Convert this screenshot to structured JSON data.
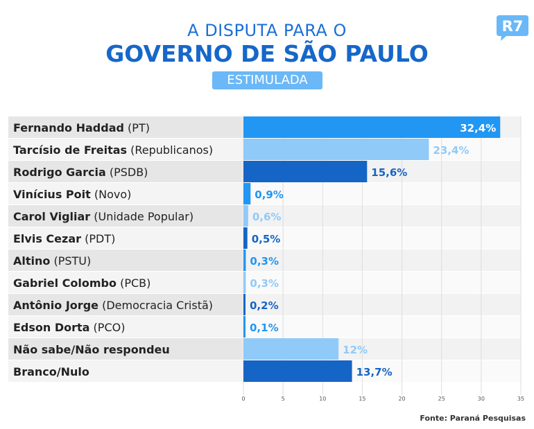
{
  "header": {
    "title_line1": "A DISPUTA PARA O",
    "title_line2": "GOVERNO DE SÃO PAULO",
    "subtitle": "ESTIMULADA",
    "logo_text": "R7"
  },
  "source": "Fonte: Paraná Pesquisas",
  "colors": {
    "dark_blue": "#1565c6",
    "mid_blue": "#2196f3",
    "light_blue": "#90caf9",
    "row_dark": "#e6e6e6",
    "row_light": "#f4f4f4",
    "title_blue": "#1667c9"
  },
  "chart_data": {
    "type": "bar",
    "orientation": "horizontal",
    "title": "A DISPUTA PARA O GOVERNO DE SÃO PAULO",
    "subtitle": "ESTIMULADA",
    "xlim": [
      0,
      35
    ],
    "xticks": [
      "0",
      "5",
      "10",
      "15",
      "20",
      "25",
      "30",
      "35"
    ],
    "grid": true,
    "categories": [
      {
        "name": "Fernando Haddad",
        "party": "(PT)"
      },
      {
        "name": "Tarcísio de Freitas",
        "party": "(Republicanos)"
      },
      {
        "name": "Rodrigo Garcia",
        "party": "(PSDB)"
      },
      {
        "name": "Vinícius Poit",
        "party": "(Novo)"
      },
      {
        "name": "Carol Vigliar",
        "party": "(Unidade Popular)"
      },
      {
        "name": "Elvis Cezar",
        "party": "(PDT)"
      },
      {
        "name": "Altino",
        "party": "(PSTU)"
      },
      {
        "name": "Gabriel Colombo",
        "party": "(PCB)"
      },
      {
        "name": "Antônio Jorge",
        "party": "(Democracia Cristã)"
      },
      {
        "name": "Edson Dorta",
        "party": "(PCO)"
      },
      {
        "name": "Não sabe/Não respondeu",
        "party": ""
      },
      {
        "name": "Branco/Nulo",
        "party": ""
      }
    ],
    "values": [
      32.4,
      23.4,
      15.6,
      0.9,
      0.6,
      0.5,
      0.3,
      0.3,
      0.2,
      0.1,
      12,
      13.7
    ],
    "value_labels": [
      "32,4%",
      "23,4%",
      "15,6%",
      "0,9%",
      "0,6%",
      "0,5%",
      "0,3%",
      "0,3%",
      "0,2%",
      "0,1%",
      "12%",
      "13,7%"
    ],
    "bar_colors": [
      "mid_blue",
      "light_blue",
      "dark_blue",
      "mid_blue",
      "light_blue",
      "dark_blue",
      "mid_blue",
      "light_blue",
      "dark_blue",
      "mid_blue",
      "light_blue",
      "dark_blue"
    ],
    "label_inside": [
      true,
      false,
      false,
      false,
      false,
      false,
      false,
      false,
      false,
      false,
      false,
      false
    ]
  }
}
